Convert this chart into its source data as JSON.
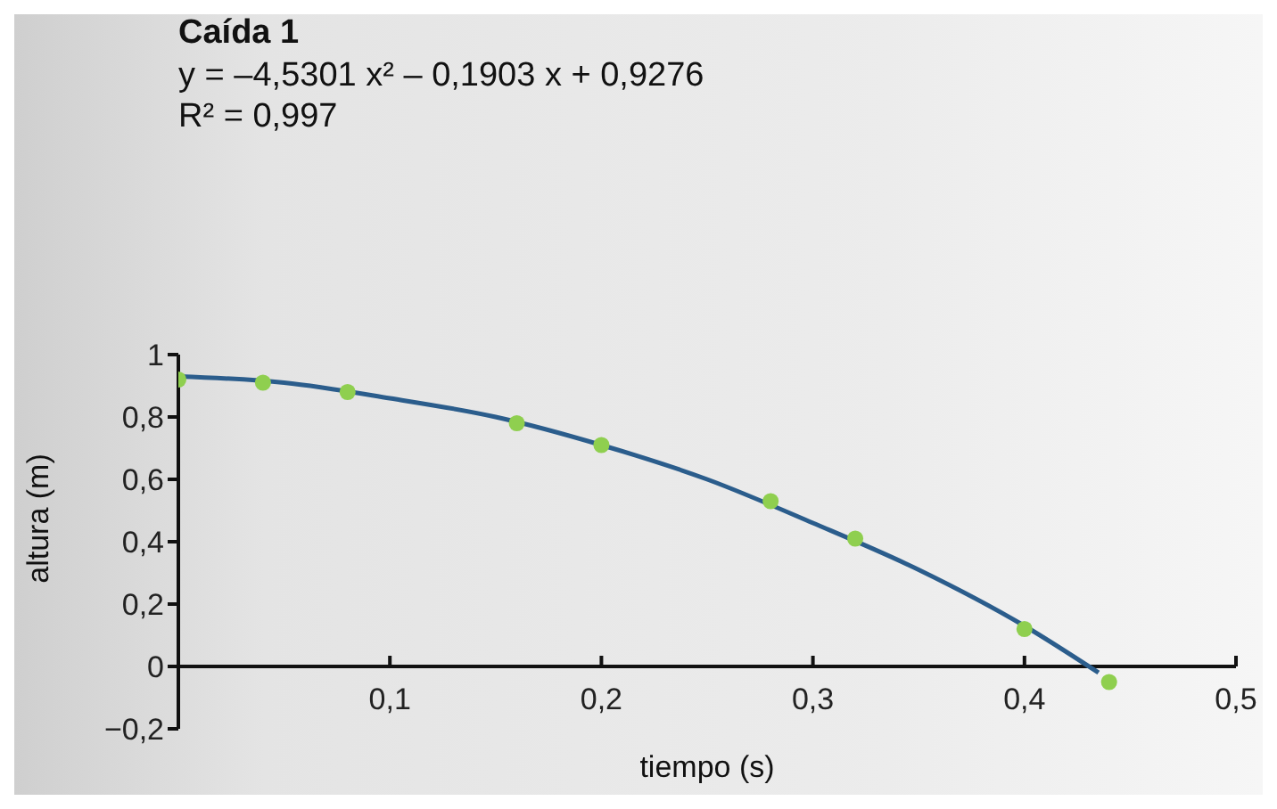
{
  "chart_data": {
    "type": "scatter",
    "title": "Caída 1",
    "annotations": [
      "y = –4,5301 x² – 0,1903 x + 0,9276",
      "R² = 0,997"
    ],
    "xlabel": "tiempo (s)",
    "ylabel": "altura (m)",
    "xlim": [
      0,
      0.5
    ],
    "ylim": [
      -0.2,
      1
    ],
    "xticks": [
      {
        "value": 0.1,
        "label": "0,1"
      },
      {
        "value": 0.2,
        "label": "0,2"
      },
      {
        "value": 0.3,
        "label": "0,3"
      },
      {
        "value": 0.4,
        "label": "0,4"
      },
      {
        "value": 0.5,
        "label": "0,5"
      }
    ],
    "yticks": [
      {
        "value": -0.2,
        "label": "−0,2"
      },
      {
        "value": 0,
        "label": "0"
      },
      {
        "value": 0.2,
        "label": "0,2"
      },
      {
        "value": 0.4,
        "label": "0,4"
      },
      {
        "value": 0.6,
        "label": "0,6"
      },
      {
        "value": 0.8,
        "label": "0,8"
      },
      {
        "value": 1,
        "label": "1"
      }
    ],
    "grid": false,
    "legend": false,
    "marker": "circle",
    "series": [
      {
        "type": "line",
        "color": "#2b5d8c",
        "marker": "none",
        "line_style": "solid",
        "x": [
          0,
          0.05,
          0.1,
          0.15,
          0.2,
          0.25,
          0.3,
          0.35,
          0.4,
          0.435
        ],
        "values": [
          0.93,
          0.91,
          0.86,
          0.8,
          0.71,
          0.6,
          0.46,
          0.31,
          0.13,
          -0.02
        ]
      },
      {
        "type": "scatter",
        "color": "#8fcf4f",
        "x": [
          0,
          0.04,
          0.08,
          0.16,
          0.2,
          0.28,
          0.32,
          0.4,
          0.44
        ],
        "values": [
          0.92,
          0.91,
          0.88,
          0.78,
          0.71,
          0.53,
          0.41,
          0.12,
          -0.05
        ]
      }
    ]
  }
}
